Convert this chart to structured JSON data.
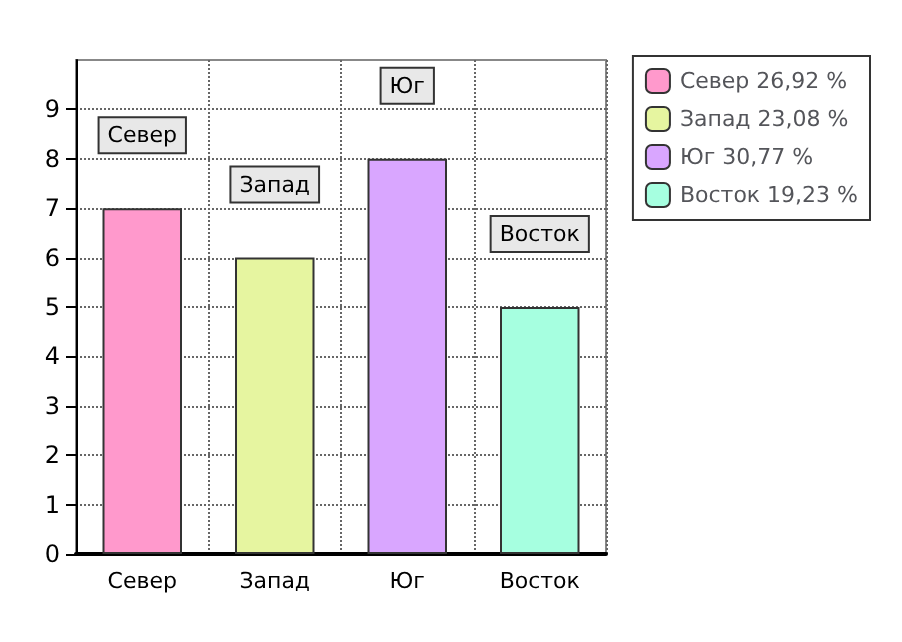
{
  "chart_data": {
    "type": "bar",
    "categories": [
      "Север",
      "Запад",
      "Юг",
      "Восток"
    ],
    "stacked": true,
    "series": [
      {
        "name": "Север 26,92 %",
        "color": "#ff99cc",
        "values": [
          7,
          null,
          null,
          null
        ]
      },
      {
        "name": "Запад 23,08 %",
        "color": "#e6f5a0",
        "values": [
          null,
          6,
          null,
          null
        ]
      },
      {
        "name": "Юг 30,77 %",
        "color": "#d9a6ff",
        "values": [
          null,
          null,
          8,
          null
        ]
      },
      {
        "name": "Восток 19,23 %",
        "color": "#a6ffe0",
        "values": [
          null,
          null,
          null,
          5
        ]
      }
    ],
    "ylim": [
      0,
      10
    ],
    "yticks": [
      0,
      1,
      2,
      3,
      4,
      5,
      6,
      7,
      8,
      9
    ],
    "grid": true,
    "legend": "top right",
    "annotations": [
      {
        "text": "Север",
        "x": "Север",
        "y": 7
      },
      {
        "text": "Запад",
        "x": "Запад",
        "y": 6
      },
      {
        "text": "Юг",
        "x": "Юг",
        "y": 8
      },
      {
        "text": "Восток",
        "x": "Восток",
        "y": 5
      }
    ]
  }
}
